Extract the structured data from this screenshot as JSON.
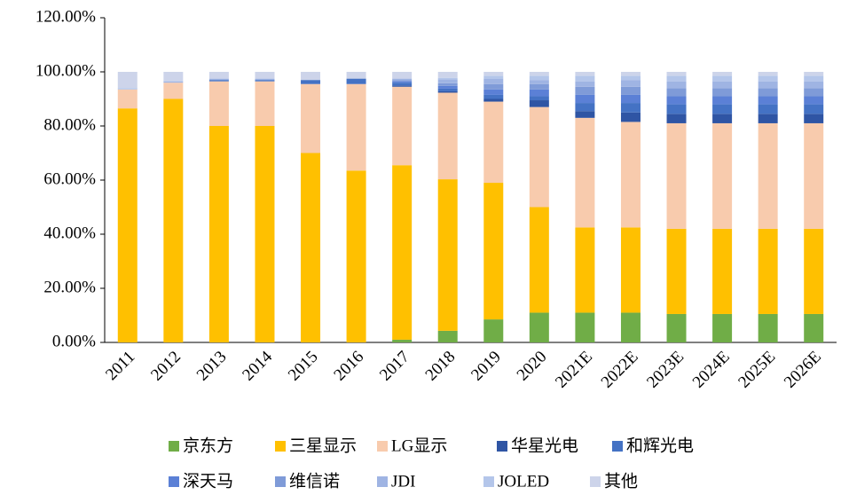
{
  "chart_data": {
    "type": "stacked_bar",
    "categories": [
      "2011",
      "2012",
      "2013",
      "2014",
      "2015",
      "2016",
      "2017",
      "2018",
      "2019",
      "2020",
      "2021E",
      "2022E",
      "2023E",
      "2024E",
      "2025E",
      "2026E"
    ],
    "series": [
      {
        "name": "京东方",
        "color": "#70ad47",
        "values": [
          0,
          0,
          0,
          0,
          0,
          0,
          1,
          4.3,
          8.5,
          11,
          11,
          11,
          10.5,
          10.5,
          10.5,
          10.5
        ]
      },
      {
        "name": "三星显示",
        "color": "#ffc000",
        "values": [
          86.5,
          90,
          80,
          80,
          70,
          63.5,
          64.5,
          56,
          50.5,
          39,
          31.5,
          31.5,
          31.5,
          31.5,
          31.5,
          31.5
        ]
      },
      {
        "name": "LG显示",
        "color": "#f8cbad",
        "values": [
          7,
          6,
          16.5,
          16.5,
          25.5,
          32,
          29,
          32,
          30,
          37,
          40.5,
          39,
          39,
          39,
          39,
          39
        ]
      },
      {
        "name": "华星光电",
        "color": "#2f55a4",
        "values": [
          0,
          0,
          0,
          0,
          0,
          0,
          0.5,
          0.5,
          1,
          2.5,
          2.5,
          3.5,
          3.5,
          3.5,
          3.5,
          3.5
        ]
      },
      {
        "name": "和辉光电",
        "color": "#4472c4",
        "values": [
          0,
          0,
          0.5,
          0.5,
          1.5,
          2,
          1,
          1,
          1.5,
          1.5,
          3,
          3.5,
          3.5,
          3.5,
          3.5,
          3.5
        ]
      },
      {
        "name": "深天马",
        "color": "#5b80d6",
        "values": [
          0,
          0,
          0,
          0,
          0,
          0,
          0.5,
          1,
          2,
          2.5,
          3,
          3,
          3,
          3,
          3,
          3
        ]
      },
      {
        "name": "维信诺",
        "color": "#7f9bd8",
        "values": [
          0,
          0,
          0,
          0,
          0,
          0,
          0.5,
          1,
          2,
          2,
          3,
          3,
          3,
          3,
          3,
          3
        ]
      },
      {
        "name": "JDI",
        "color": "#9fb4e3",
        "values": [
          0,
          0.5,
          0.5,
          0.5,
          0,
          0,
          0.5,
          1.5,
          2,
          1.5,
          2,
          2.5,
          2.5,
          2.5,
          2.5,
          2.5
        ]
      },
      {
        "name": "JOLED",
        "color": "#b4c6ea",
        "values": [
          0.5,
          0,
          0,
          0,
          0,
          0,
          0,
          0.5,
          1,
          1.5,
          2,
          1.5,
          2,
          2,
          2,
          2
        ]
      },
      {
        "name": "其他",
        "color": "#cdd4ea",
        "values": [
          6,
          3.5,
          2.5,
          2.5,
          3,
          2.5,
          2.5,
          2.2,
          1.5,
          1.5,
          1.5,
          1.5,
          1.5,
          1.5,
          1.5,
          1.5
        ]
      }
    ],
    "ylim": [
      0,
      120
    ],
    "yticks": [
      {
        "value": 0,
        "label": "0.00%"
      },
      {
        "value": 20,
        "label": "20.00%"
      },
      {
        "value": 40,
        "label": "40.00%"
      },
      {
        "value": 60,
        "label": "60.00%"
      },
      {
        "value": 80,
        "label": "80.00%"
      },
      {
        "value": 100,
        "label": "100.00%"
      },
      {
        "value": 120,
        "label": "120.00%"
      }
    ],
    "grid": false
  }
}
